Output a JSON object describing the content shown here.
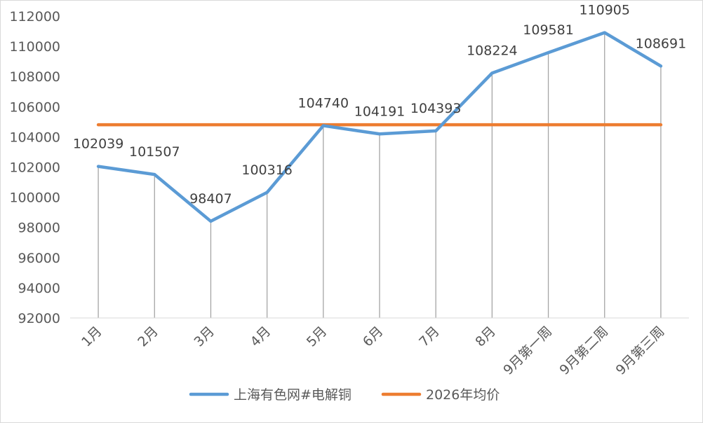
{
  "chart_data": {
    "type": "line",
    "title": "",
    "xlabel": "",
    "ylabel": "",
    "categories": [
      "1月",
      "2月",
      "3月",
      "4月",
      "5月",
      "6月",
      "7月",
      "8月",
      "9月第一周",
      "9月第二周",
      "9月第三周"
    ],
    "series": [
      {
        "name": "上海有色网#电解铜",
        "color": "#5b9bd5",
        "values": [
          102039,
          101507,
          98407,
          100316,
          104740,
          104191,
          104393,
          108224,
          109581,
          110905,
          108691
        ],
        "labels": [
          "102039",
          "101507",
          "98407",
          "100316",
          "104740",
          "104191",
          "104393",
          "108224",
          "109581",
          "110905",
          "108691"
        ]
      },
      {
        "name": "2026年均价",
        "color": "#ed7d31",
        "values": [
          104800,
          104800,
          104800,
          104800,
          104800,
          104800,
          104800,
          104800,
          104800,
          104800,
          104800
        ]
      }
    ],
    "ylim": [
      92000,
      112000
    ],
    "yticks": [
      "92000",
      "94000",
      "96000",
      "98000",
      "100000",
      "102000",
      "104000",
      "106000",
      "108000",
      "110000",
      "112000"
    ],
    "drop_lines": true,
    "grid": false,
    "legend_position": "bottom"
  }
}
